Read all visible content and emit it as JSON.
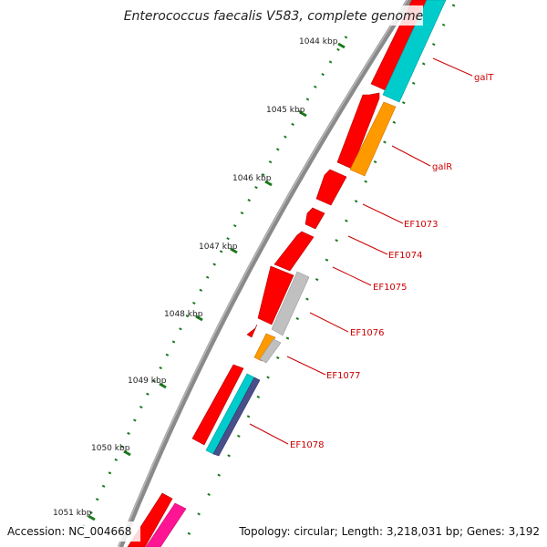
{
  "title": "Enterococcus faecalis V583, complete genome",
  "accession": "Accession: NC_004668",
  "topology": "Topology: circular; Length: 3,218,031 bp; Genes: 3,192",
  "kbp_labels": [
    "1044 kbp",
    "1045 kbp",
    "1046 kbp",
    "1047 kbp",
    "1048 kbp",
    "1049 kbp",
    "1050 kbp",
    "1051 kbp"
  ],
  "gene_labels": [
    "galT",
    "galR",
    "EF1073",
    "EF1074",
    "EF1075",
    "EF1076",
    "EF1077",
    "EF1078"
  ],
  "colors": {
    "backbone": "#8a8a8a",
    "forward_cds": "#ff0000",
    "teal": "#00cccc",
    "orange": "#ff9900",
    "grey": "#c0c0c0",
    "navy": "#4a4f8a",
    "magenta": "#ff1493",
    "label_red": "#cc0000",
    "tick_green": "#1b7a1b"
  }
}
